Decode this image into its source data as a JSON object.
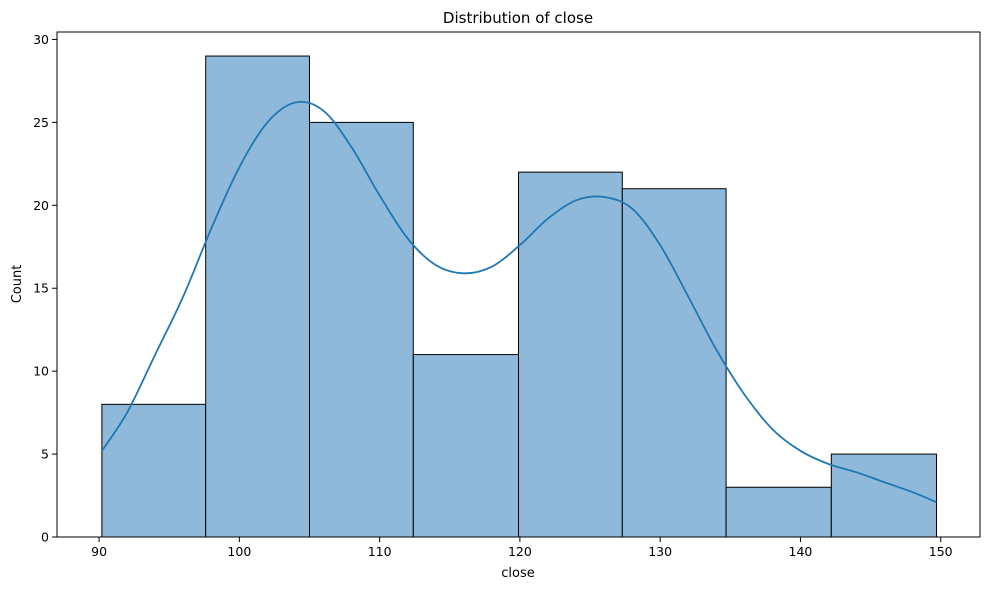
{
  "chart_data": {
    "type": "bar",
    "title": "Distribution of close",
    "xlabel": "close",
    "ylabel": "Count",
    "xlim": [
      87.0,
      152.8
    ],
    "ylim": [
      0,
      30.45
    ],
    "x_ticks": [
      90,
      100,
      110,
      120,
      130,
      140,
      150
    ],
    "y_ticks": [
      0,
      5,
      10,
      15,
      20,
      25,
      30
    ],
    "grid": false,
    "legend": "none",
    "bins": [
      {
        "start": 90.2,
        "end": 97.6,
        "count": 8
      },
      {
        "start": 97.6,
        "end": 105.0,
        "count": 29
      },
      {
        "start": 105.0,
        "end": 112.4,
        "count": 25
      },
      {
        "start": 112.4,
        "end": 119.9,
        "count": 11
      },
      {
        "start": 119.9,
        "end": 127.3,
        "count": 22
      },
      {
        "start": 127.3,
        "end": 134.7,
        "count": 21
      },
      {
        "start": 134.7,
        "end": 142.2,
        "count": 3
      },
      {
        "start": 142.2,
        "end": 149.7,
        "count": 5
      }
    ],
    "kde": {
      "x": [
        90.2,
        92,
        94,
        96,
        98,
        100,
        102,
        104,
        106,
        108,
        110,
        112,
        114,
        116,
        118,
        120,
        122,
        124,
        126,
        128,
        130,
        132,
        134,
        136,
        138,
        140,
        142,
        144,
        146,
        148,
        149.7
      ],
      "y": [
        5.2,
        7.5,
        11.0,
        14.5,
        18.6,
        22.3,
        25.0,
        26.2,
        25.7,
        23.5,
        20.6,
        18.0,
        16.4,
        15.9,
        16.3,
        17.6,
        19.2,
        20.3,
        20.5,
        19.8,
        17.6,
        14.5,
        11.3,
        8.6,
        6.5,
        5.2,
        4.4,
        3.9,
        3.3,
        2.7,
        2.1
      ]
    },
    "colors": {
      "bar_fill": "#8fb9da",
      "bar_edge": "#000000",
      "kde_line": "#1f77b4"
    }
  }
}
